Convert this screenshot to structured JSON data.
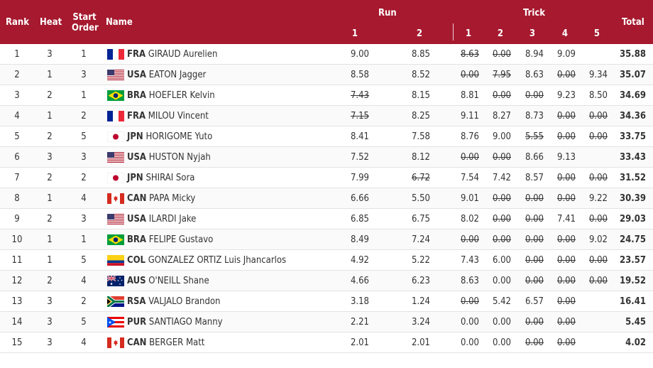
{
  "headers": {
    "rank": "Rank",
    "heat": "Heat",
    "start_order": "Start Order",
    "name": "Name",
    "run": "Run",
    "trick": "Trick",
    "total": "Total",
    "run_cols": [
      "1",
      "2"
    ],
    "trick_cols": [
      "1",
      "2",
      "3",
      "4",
      "5"
    ]
  },
  "colors": {
    "header_bg": "#a6192e"
  },
  "rows": [
    {
      "rank": "1",
      "heat": "3",
      "start": "1",
      "flag": "FRA",
      "noc": "FRA",
      "athlete": "GIRAUD Aurelien",
      "run": [
        "9.00",
        "8.85"
      ],
      "trick": [
        "8.63",
        "0.00",
        "8.94",
        "9.09",
        ""
      ],
      "struck": [
        true,
        true,
        false,
        false,
        false
      ],
      "total": "35.88"
    },
    {
      "rank": "2",
      "heat": "1",
      "start": "3",
      "flag": "USA",
      "noc": "USA",
      "athlete": "EATON Jagger",
      "run": [
        "8.58",
        "8.52"
      ],
      "trick": [
        "0.00",
        "7.95",
        "8.63",
        "0.00",
        "9.34"
      ],
      "struck": [
        true,
        true,
        false,
        true,
        false
      ],
      "total": "35.07"
    },
    {
      "rank": "3",
      "heat": "2",
      "start": "1",
      "flag": "BRA",
      "noc": "BRA",
      "athlete": "HOEFLER Kelvin",
      "run": [
        "7.43",
        "8.15"
      ],
      "run_struck": [
        true,
        false
      ],
      "trick": [
        "8.81",
        "0.00",
        "0.00",
        "9.23",
        "8.50"
      ],
      "struck": [
        false,
        true,
        true,
        false,
        false
      ],
      "total": "34.69"
    },
    {
      "rank": "4",
      "heat": "1",
      "start": "2",
      "flag": "FRA",
      "noc": "FRA",
      "athlete": "MILOU Vincent",
      "run": [
        "7.15",
        "8.25"
      ],
      "run_struck": [
        true,
        false
      ],
      "trick": [
        "9.11",
        "8.27",
        "8.73",
        "0.00",
        "0.00"
      ],
      "struck": [
        false,
        false,
        false,
        true,
        true
      ],
      "total": "34.36"
    },
    {
      "rank": "5",
      "heat": "2",
      "start": "5",
      "flag": "JPN",
      "noc": "JPN",
      "athlete": "HORIGOME Yuto",
      "run": [
        "8.41",
        "7.58"
      ],
      "trick": [
        "8.76",
        "9.00",
        "5.55",
        "0.00",
        "0.00"
      ],
      "struck": [
        false,
        false,
        true,
        true,
        true
      ],
      "total": "33.75"
    },
    {
      "rank": "6",
      "heat": "3",
      "start": "3",
      "flag": "USA",
      "noc": "USA",
      "athlete": "HUSTON Nyjah",
      "run": [
        "7.52",
        "8.12"
      ],
      "trick": [
        "0.00",
        "0.00",
        "8.66",
        "9.13",
        ""
      ],
      "struck": [
        true,
        true,
        false,
        false,
        false
      ],
      "total": "33.43"
    },
    {
      "rank": "7",
      "heat": "2",
      "start": "2",
      "flag": "JPN",
      "noc": "JPN",
      "athlete": "SHIRAI Sora",
      "run": [
        "7.99",
        "6.72"
      ],
      "run_struck": [
        false,
        true
      ],
      "trick": [
        "7.54",
        "7.42",
        "8.57",
        "0.00",
        "0.00"
      ],
      "struck": [
        false,
        false,
        false,
        true,
        true
      ],
      "total": "31.52"
    },
    {
      "rank": "8",
      "heat": "1",
      "start": "4",
      "flag": "CAN",
      "noc": "CAN",
      "athlete": "PAPA Micky",
      "run": [
        "6.66",
        "5.50"
      ],
      "trick": [
        "9.01",
        "0.00",
        "0.00",
        "0.00",
        "9.22"
      ],
      "struck": [
        false,
        true,
        true,
        true,
        false
      ],
      "total": "30.39"
    },
    {
      "rank": "9",
      "heat": "2",
      "start": "3",
      "flag": "USA",
      "noc": "USA",
      "athlete": "ILARDI Jake",
      "run": [
        "6.85",
        "6.75"
      ],
      "trick": [
        "8.02",
        "0.00",
        "0.00",
        "7.41",
        "0.00"
      ],
      "struck": [
        false,
        true,
        true,
        false,
        true
      ],
      "total": "29.03"
    },
    {
      "rank": "10",
      "heat": "1",
      "start": "1",
      "flag": "BRA",
      "noc": "BRA",
      "athlete": "FELIPE Gustavo",
      "run": [
        "8.49",
        "7.24"
      ],
      "trick": [
        "0.00",
        "0.00",
        "0.00",
        "0.00",
        "9.02"
      ],
      "struck": [
        true,
        true,
        true,
        true,
        false
      ],
      "total": "24.75"
    },
    {
      "rank": "11",
      "heat": "1",
      "start": "5",
      "flag": "COL",
      "noc": "COL",
      "athlete": "GONZALEZ ORTIZ Luis Jhancarlos",
      "run": [
        "4.92",
        "5.22"
      ],
      "trick": [
        "7.43",
        "6.00",
        "0.00",
        "0.00",
        "0.00"
      ],
      "struck": [
        false,
        false,
        true,
        true,
        true
      ],
      "total": "23.57"
    },
    {
      "rank": "12",
      "heat": "2",
      "start": "4",
      "flag": "AUS",
      "noc": "AUS",
      "athlete": "O'NEILL Shane",
      "run": [
        "4.66",
        "6.23"
      ],
      "trick": [
        "8.63",
        "0.00",
        "0.00",
        "0.00",
        "0.00"
      ],
      "struck": [
        false,
        false,
        true,
        true,
        true
      ],
      "total": "19.52"
    },
    {
      "rank": "13",
      "heat": "3",
      "start": "2",
      "flag": "RSA",
      "noc": "RSA",
      "athlete": "VALJALO Brandon",
      "run": [
        "3.18",
        "1.24"
      ],
      "trick": [
        "0.00",
        "5.42",
        "6.57",
        "0.00",
        ""
      ],
      "struck": [
        true,
        false,
        false,
        true,
        false
      ],
      "total": "16.41"
    },
    {
      "rank": "14",
      "heat": "3",
      "start": "5",
      "flag": "PUR",
      "noc": "PUR",
      "athlete": "SANTIAGO Manny",
      "run": [
        "2.21",
        "3.24"
      ],
      "trick": [
        "0.00",
        "0.00",
        "0.00",
        "0.00",
        ""
      ],
      "struck": [
        false,
        false,
        true,
        true,
        false
      ],
      "total": "5.45"
    },
    {
      "rank": "15",
      "heat": "3",
      "start": "4",
      "flag": "CAN",
      "noc": "CAN",
      "athlete": "BERGER Matt",
      "run": [
        "2.01",
        "2.01"
      ],
      "trick": [
        "0.00",
        "0.00",
        "0.00",
        "0.00",
        ""
      ],
      "struck": [
        false,
        false,
        true,
        true,
        false
      ],
      "total": "4.02"
    }
  ]
}
